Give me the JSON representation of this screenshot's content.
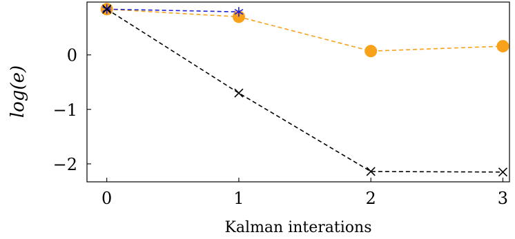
{
  "chart_data": {
    "type": "line",
    "xlabel": "Kalman interations",
    "ylabel": "log(e)",
    "x": [
      0,
      1,
      2,
      3
    ],
    "xlim": [
      -0.15,
      3.05
    ],
    "ylim": [
      -2.33,
      0.97
    ],
    "xticks": [
      0,
      1,
      2,
      3
    ],
    "yticks": [
      -2,
      -1,
      0
    ],
    "ytick_labels": [
      "−2",
      "−1",
      "0"
    ],
    "grid": false,
    "series": [
      {
        "x": [
          0,
          1,
          2,
          3
        ],
        "values": [
          0.84,
          0.7,
          0.07,
          0.16
        ],
        "color": "#f8a11b",
        "marker": "circle",
        "linestyle": "dashed"
      },
      {
        "x": [
          0,
          1
        ],
        "values": [
          0.84,
          0.79
        ],
        "color": "#1f1fd6",
        "marker": "asterisk",
        "linestyle": "dashed"
      },
      {
        "x": [
          0,
          1,
          2,
          3
        ],
        "values": [
          0.84,
          -0.7,
          -2.14,
          -2.15
        ],
        "color": "#000000",
        "marker": "x",
        "linestyle": "dashed"
      }
    ]
  }
}
